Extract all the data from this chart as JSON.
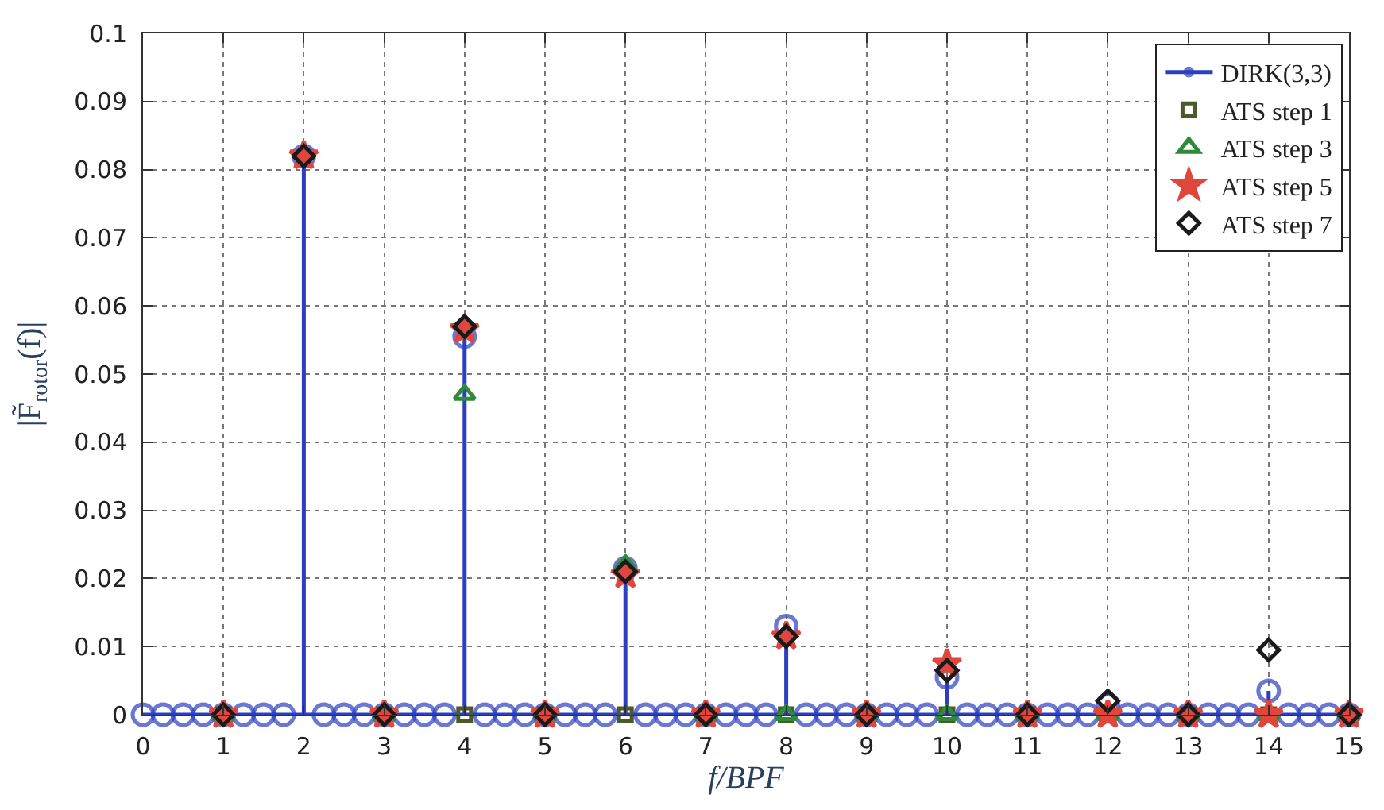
{
  "chart_data": {
    "type": "lollipop",
    "xlabel": "f/BPF",
    "ylabel": "|F̃$_{rotor}$(f)|",
    "xlim": [
      0,
      15
    ],
    "xticks": [
      0,
      1,
      2,
      3,
      4,
      5,
      6,
      7,
      8,
      9,
      10,
      11,
      12,
      13,
      14,
      15
    ],
    "ylim": [
      0,
      0.1
    ],
    "yticks": [
      0,
      0.01,
      0.02,
      0.03,
      0.04,
      0.05,
      0.06,
      0.07,
      0.08,
      0.09,
      0.1
    ],
    "grid": true,
    "legend": "top right",
    "series": [
      {
        "name": "DIRK(3,3)",
        "type": "lollipop",
        "marker": "circle",
        "color": "#2b3fbf",
        "x": [
          0,
          0.25,
          0.5,
          0.75,
          1,
          1.25,
          1.5,
          1.75,
          2,
          2.25,
          2.5,
          2.75,
          3,
          3.25,
          3.5,
          3.75,
          4,
          4.25,
          4.5,
          4.75,
          5,
          5.25,
          5.5,
          5.75,
          6,
          6.25,
          6.5,
          6.75,
          7,
          7.25,
          7.5,
          7.75,
          8,
          8.25,
          8.5,
          8.75,
          9,
          9.25,
          9.5,
          9.75,
          10,
          10.25,
          10.5,
          10.75,
          11,
          11.25,
          11.5,
          11.75,
          12,
          12.25,
          12.5,
          12.75,
          13,
          13.25,
          13.5,
          13.75,
          14,
          14.25,
          14.5,
          14.75,
          15
        ],
        "values": [
          0,
          0,
          0,
          0,
          0,
          0,
          0,
          0,
          0.082,
          0,
          0,
          0,
          0,
          0,
          0,
          0,
          0.0555,
          0,
          0,
          0,
          0,
          0,
          0,
          0,
          0.0215,
          0,
          0,
          0,
          0,
          0,
          0,
          0,
          0.013,
          0,
          0,
          0,
          0,
          0,
          0,
          0,
          0.0055,
          0,
          0,
          0,
          0,
          0,
          0,
          0,
          0.0015,
          0,
          0,
          0,
          0,
          0,
          0,
          0,
          0.0035,
          0,
          0,
          0,
          0
        ]
      },
      {
        "name": "ATS step 1",
        "type": "scatter",
        "marker": "square",
        "color": "#4a5a2a",
        "x": [
          1,
          2,
          3,
          4,
          5,
          6,
          7,
          8,
          9,
          10,
          11,
          12,
          13,
          14,
          15
        ],
        "values": [
          0,
          null,
          0,
          0,
          0,
          0,
          0,
          0,
          0,
          0,
          0,
          null,
          0,
          0,
          0
        ]
      },
      {
        "name": "ATS step 3",
        "type": "scatter",
        "marker": "triangle",
        "color": "#2e8b3a",
        "x": [
          1,
          2,
          3,
          4,
          5,
          6,
          7,
          8,
          9,
          10,
          11,
          12,
          13,
          14,
          15
        ],
        "values": [
          0,
          null,
          0,
          0.047,
          0,
          0.022,
          0,
          0,
          0,
          0,
          0,
          0,
          0,
          0,
          0
        ]
      },
      {
        "name": "ATS step 5",
        "type": "scatter",
        "marker": "star",
        "color": "#e0463c",
        "x": [
          1,
          2,
          3,
          4,
          5,
          6,
          7,
          8,
          9,
          10,
          11,
          12,
          13,
          14,
          15
        ],
        "values": [
          0,
          0.082,
          0,
          0.0565,
          0,
          0.0205,
          0,
          0.0115,
          0,
          0.0075,
          0,
          0,
          0,
          0,
          0
        ]
      },
      {
        "name": "ATS step 7",
        "type": "scatter",
        "marker": "diamond",
        "color": "#1a1a1a",
        "x": [
          1,
          2,
          3,
          4,
          5,
          6,
          7,
          8,
          9,
          10,
          11,
          12,
          13,
          14,
          15
        ],
        "values": [
          0,
          0.082,
          0,
          0.057,
          0,
          0.021,
          0,
          0.0115,
          0,
          0.0065,
          0,
          0.002,
          0,
          0.0095,
          0
        ]
      }
    ]
  }
}
